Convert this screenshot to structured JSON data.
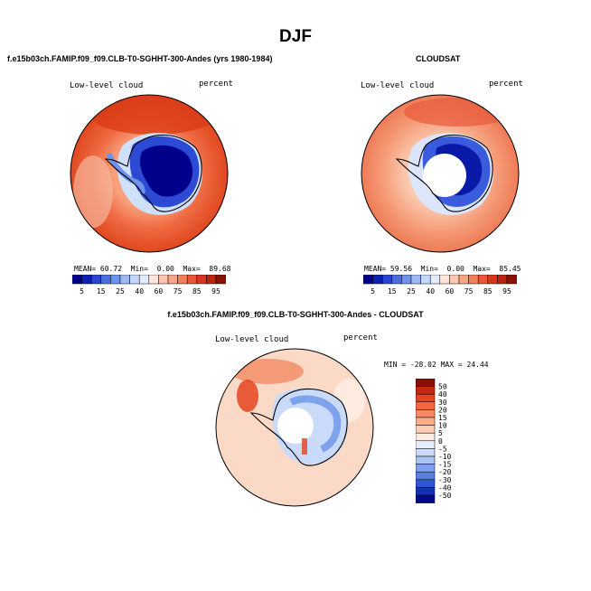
{
  "title": "DJF",
  "panels": [
    {
      "title": "f.e15b03ch.FAMIP.f09_f09.CLB-T0-SGHHT-300-Andes (yrs 1980-1984)",
      "variable_label": "Low-level cloud",
      "units_label": "percent",
      "stats": {
        "mean_label": "MEAN=",
        "mean": "60.72",
        "min_label": "Min=",
        "min": "0.00",
        "max_label": "Max=",
        "max": "89.68"
      }
    },
    {
      "title": "CLOUDSAT",
      "variable_label": "Low-level cloud",
      "units_label": "percent",
      "stats": {
        "mean_label": "MEAN=",
        "mean": "59.56",
        "min_label": "Min=",
        "min": "0.00",
        "max_label": "Max=",
        "max": "85.45"
      }
    },
    {
      "title": "f.e15b03ch.FAMIP.f09_f09.CLB-T0-SGHHT-300-Andes - CLOUDSAT",
      "variable_label": "Low-level cloud",
      "units_label": "percent",
      "minmax": "MIN = -28.02 MAX =  24.44"
    }
  ],
  "chart_data": [
    {
      "type": "heatmap",
      "projection": "south polar stereographic",
      "field": "model low-level cloud fraction",
      "colorbar": {
        "orientation": "horizontal",
        "tick_labels": [
          "5",
          "15",
          "25",
          "40",
          "60",
          "75",
          "85",
          "95"
        ],
        "levels": [
          5,
          10,
          15,
          20,
          25,
          30,
          40,
          50,
          60,
          65,
          75,
          80,
          85,
          90,
          95
        ],
        "colors": [
          "#00008b",
          "#0c1fb0",
          "#2a45d0",
          "#4a6ee0",
          "#6f93ec",
          "#9cb8f4",
          "#c3d7fa",
          "#e3ecfd",
          "#fde6dc",
          "#fcc6b0",
          "#f7a487",
          "#f17e5c",
          "#e8573a",
          "#d73620",
          "#b8240f",
          "#8a0f05"
        ]
      },
      "summary": {
        "mean": 60.72,
        "min": 0.0,
        "max": 89.68
      }
    },
    {
      "type": "heatmap",
      "projection": "south polar stereographic",
      "field": "CloudSat low-level cloud fraction",
      "colorbar": {
        "orientation": "horizontal",
        "tick_labels": [
          "5",
          "15",
          "25",
          "40",
          "60",
          "75",
          "85",
          "95"
        ],
        "levels": [
          5,
          10,
          15,
          20,
          25,
          30,
          40,
          50,
          60,
          65,
          75,
          80,
          85,
          90,
          95
        ],
        "colors": [
          "#00008b",
          "#0c1fb0",
          "#2a45d0",
          "#4a6ee0",
          "#6f93ec",
          "#9cb8f4",
          "#c3d7fa",
          "#e3ecfd",
          "#fde6dc",
          "#fcc6b0",
          "#f7a487",
          "#f17e5c",
          "#e8573a",
          "#d73620",
          "#b8240f",
          "#8a0f05"
        ]
      },
      "summary": {
        "mean": 59.56,
        "min": 0.0,
        "max": 85.45
      }
    },
    {
      "type": "heatmap",
      "projection": "south polar stereographic",
      "field": "model minus CloudSat difference",
      "colorbar": {
        "orientation": "vertical",
        "tick_labels": [
          "50",
          "40",
          "30",
          "20",
          "15",
          "10",
          "5",
          "0",
          "-5",
          "-10",
          "-15",
          "-20",
          "-30",
          "-40",
          "-50"
        ],
        "levels": [
          50,
          40,
          30,
          20,
          15,
          10,
          5,
          0,
          -5,
          -10,
          -15,
          -20,
          -30,
          -40,
          -50
        ],
        "colors": [
          "#8a0f05",
          "#c6280f",
          "#e4431f",
          "#f3683f",
          "#f78a63",
          "#f9ad8b",
          "#fbcdb4",
          "#fdebe0",
          "#e6eefc",
          "#c9dbf8",
          "#a9c3f3",
          "#7fa2ec",
          "#587ee2",
          "#2f55d2",
          "#1532b5",
          "#000b8c"
        ]
      },
      "summary": {
        "min": -28.02,
        "max": 24.44
      }
    }
  ]
}
